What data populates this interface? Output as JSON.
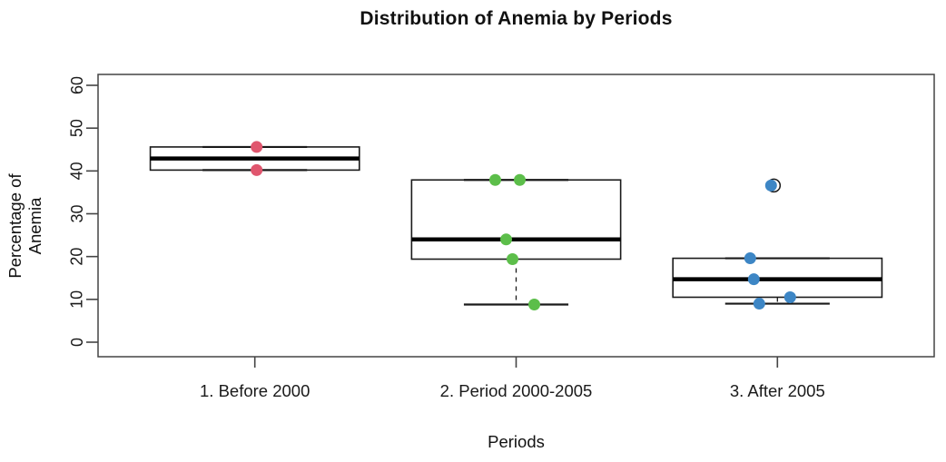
{
  "chart_data": {
    "type": "boxplot",
    "title": "Distribution of Anemia by Periods",
    "xlabel": "Periods",
    "ylabel": "Percentage of Anemia",
    "ylim": [
      0,
      60
    ],
    "yticks": [
      0,
      10,
      20,
      30,
      40,
      50,
      60
    ],
    "grid": false,
    "legend": "none",
    "frame_color": "#444444",
    "box_color": "#1a1a1a",
    "groups": [
      {
        "label": "1. Before 2000",
        "point_color": "#e0566e",
        "stats": {
          "whisker_low": 40.2,
          "q1": 40.2,
          "median": 42.9,
          "q3": 45.6,
          "whisker_high": 45.6
        },
        "outliers": [],
        "points": [
          {
            "value": 45.6,
            "dx": 2
          },
          {
            "value": 40.2,
            "dx": 2
          }
        ]
      },
      {
        "label": "2. Period 2000-2005",
        "point_color": "#5cbe4a",
        "stats": {
          "whisker_low": 8.8,
          "q1": 19.4,
          "median": 24.0,
          "q3": 37.9,
          "whisker_high": 37.9
        },
        "outliers": [],
        "points": [
          {
            "value": 37.9,
            "dx": -23
          },
          {
            "value": 37.9,
            "dx": 4
          },
          {
            "value": 24.0,
            "dx": -11
          },
          {
            "value": 19.4,
            "dx": -4
          },
          {
            "value": 8.8,
            "dx": 20
          }
        ]
      },
      {
        "label": "3. After 2005",
        "point_color": "#3d86c5",
        "stats": {
          "whisker_low": 9.0,
          "q1": 10.5,
          "median": 14.7,
          "q3": 19.6,
          "whisker_high": 19.6
        },
        "outliers": [
          {
            "value": 36.6,
            "dx": -4
          }
        ],
        "points": [
          {
            "value": 36.6,
            "dx": -7
          },
          {
            "value": 19.6,
            "dx": -30
          },
          {
            "value": 14.7,
            "dx": -26
          },
          {
            "value": 10.5,
            "dx": 14
          },
          {
            "value": 9.0,
            "dx": -20
          }
        ]
      }
    ]
  }
}
